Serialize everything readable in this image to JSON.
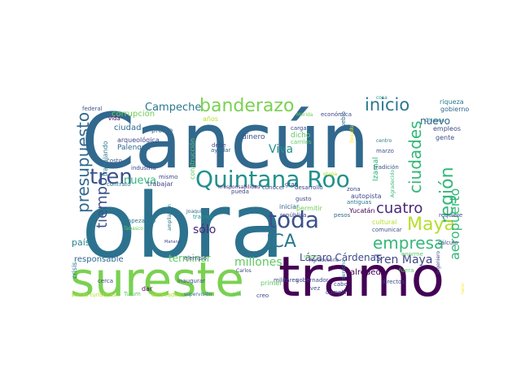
{
  "words": [
    {
      "text": "Cancún",
      "color": "#31688e"
    },
    {
      "text": "obra",
      "color": "#2c728e"
    },
    {
      "text": "sureste",
      "color": "#7ad151"
    },
    {
      "text": "tramo",
      "color": "#440154"
    },
    {
      "text": "Quintana Roo",
      "color": "#21918c"
    },
    {
      "text": "banderazo",
      "color": "#7ad151"
    },
    {
      "text": "presupuesto",
      "color": "#31688e"
    },
    {
      "text": "tren",
      "color": "#3b528b"
    },
    {
      "text": "inicio",
      "color": "#2a788e"
    },
    {
      "text": "región",
      "color": "#35b779"
    },
    {
      "text": "ciudades",
      "color": "#35b779"
    },
    {
      "text": "Maya",
      "color": "#b5de2b"
    },
    {
      "text": "empresa",
      "color": "#35b779"
    },
    {
      "text": "toda",
      "color": "#3b528b"
    },
    {
      "text": "ICA",
      "color": "#2a788e"
    },
    {
      "text": "cuatro",
      "color": "#482878"
    },
    {
      "text": "tiempo",
      "color": "#3b528b"
    },
    {
      "text": "aeropuerto",
      "color": "#35b779"
    },
    {
      "text": "Tren Maya",
      "color": "#3e4989"
    },
    {
      "text": "nuevo",
      "color": "#31688e"
    },
    {
      "text": "Campeche",
      "color": "#2a788e"
    },
    {
      "text": "nueva",
      "color": "#35b779"
    },
    {
      "text": "Viva",
      "color": "#21918c"
    },
    {
      "text": "sólo",
      "color": "#482878"
    },
    {
      "text": "millones",
      "color": "#5ec962"
    },
    {
      "text": "terminar",
      "color": "#5ec962"
    },
    {
      "text": "Lázaro Cárdenas",
      "color": "#3e4989"
    },
    {
      "text": "responsable",
      "color": "#31688e"
    },
    {
      "text": "país",
      "color": "#26828e"
    },
    {
      "text": "corrupción",
      "color": "#6ece58"
    },
    {
      "text": "ciudad",
      "color": "#31688e"
    },
    {
      "text": "Palenque",
      "color": "#31688e"
    },
    {
      "text": "arqueológica",
      "color": "#3e4989"
    },
    {
      "text": "vida",
      "color": "#440154"
    },
    {
      "text": "federal",
      "color": "#3b528b"
    },
    {
      "text": "años",
      "color": "#b5de2b"
    },
    {
      "text": "pronto",
      "color": "#31688e"
    },
    {
      "text": "dinero",
      "color": "#3b528b"
    },
    {
      "text": "construcción",
      "color": "#5ec962"
    },
    {
      "text": "debe",
      "color": "#3e4989"
    },
    {
      "text": "ayudar",
      "color": "#31688e"
    },
    {
      "text": "carga",
      "color": "#3e4989"
    },
    {
      "text": "dicho",
      "color": "#5ec962"
    },
    {
      "text": "carriles",
      "color": "#5ec962"
    },
    {
      "text": "Mérida",
      "color": "#6ece58"
    },
    {
      "text": "económica",
      "color": "#3e4989"
    },
    {
      "text": "pueblo",
      "color": "#31688e"
    },
    {
      "text": "llevado",
      "color": "#fde725"
    },
    {
      "text": "cosa",
      "color": "#21918c"
    },
    {
      "text": "riqueza",
      "color": "#2a788e"
    },
    {
      "text": "gobierno",
      "color": "#31688e"
    },
    {
      "text": "Chiapas",
      "color": "#2a788e"
    },
    {
      "text": "empleos",
      "color": "#3e4989"
    },
    {
      "text": "gente",
      "color": "#3b528b"
    },
    {
      "text": "centro",
      "color": "#2a788e"
    },
    {
      "text": "marzo",
      "color": "#3b528b"
    },
    {
      "text": "Izamal",
      "color": "#35b779"
    },
    {
      "text": "tradición",
      "color": "#3b528b"
    },
    {
      "text": "trabajando",
      "color": "#2a788e"
    },
    {
      "text": "costo",
      "color": "#3b528b"
    },
    {
      "text": "industria",
      "color": "#3e4989"
    },
    {
      "text": "contrato",
      "color": "#2a788e"
    },
    {
      "text": "mismo",
      "color": "#3e4989"
    },
    {
      "text": "trabajar",
      "color": "#3e4989"
    },
    {
      "text": "irresponsabilidad",
      "color": "#482878"
    },
    {
      "text": "conocer",
      "color": "#3e4989"
    },
    {
      "text": "pueda",
      "color": "#3e4989"
    },
    {
      "text": "gran",
      "color": "#3e4989"
    },
    {
      "text": "desarrollo",
      "color": "#3e4989"
    },
    {
      "text": "etapa",
      "color": "#b5de2b"
    },
    {
      "text": "zona",
      "color": "#3e4989"
    },
    {
      "text": "Agradecido",
      "color": "#35b779"
    },
    {
      "text": "autopista",
      "color": "#3e4989"
    },
    {
      "text": "antiguas",
      "color": "#2a788e"
    },
    {
      "text": "gusto",
      "color": "#3e4989"
    },
    {
      "text": "iniciar",
      "color": "#31688e"
    },
    {
      "text": "permitir",
      "color": "#6ece58"
    },
    {
      "text": "república",
      "color": "#3e4989"
    },
    {
      "text": "pesos",
      "color": "#31688e"
    },
    {
      "text": "Yucatán",
      "color": "#440154"
    },
    {
      "text": "requiere",
      "color": "#3e4989"
    },
    {
      "text": "cultural",
      "color": "#b5de2b"
    },
    {
      "text": "comunicar",
      "color": "#3b528b"
    },
    {
      "text": "cálculo",
      "color": "#3e4989"
    },
    {
      "text": "ingeniero",
      "color": "#3e4989"
    },
    {
      "text": "fuera",
      "color": "#5ec962"
    },
    {
      "text": "Empezando",
      "color": "#2a788e"
    },
    {
      "text": "Tabasco",
      "color": "#5ec962"
    },
    {
      "text": "ampliación",
      "color": "#2a788e"
    },
    {
      "text": "Joaquín",
      "color": "#31688e"
    },
    {
      "text": "trabajo",
      "color": "#21918c"
    },
    {
      "text": "Mañana",
      "color": "#3e4989"
    },
    {
      "text": "ejemplo",
      "color": "#3e4989"
    },
    {
      "text": "Carlos",
      "color": "#3e4989"
    },
    {
      "text": "militares",
      "color": "#3e4989"
    },
    {
      "text": "Agradecerle",
      "color": "#3e4989"
    },
    {
      "text": "seguro",
      "color": "#6ece58"
    },
    {
      "text": "gobernador",
      "color": "#3e4989"
    },
    {
      "text": "alrededor",
      "color": "#440154"
    },
    {
      "text": "vez",
      "color": "#3b528b"
    },
    {
      "text": "cabo",
      "color": "#3e4989"
    },
    {
      "text": "cumplir",
      "color": "#3e4989"
    },
    {
      "text": "directos",
      "color": "#3e4989"
    },
    {
      "text": "derecho",
      "color": "#2a788e"
    },
    {
      "text": "crisis",
      "color": "#2a788e"
    },
    {
      "text": "cerca",
      "color": "#3e4989"
    },
    {
      "text": "inaugurar",
      "color": "#3e4989"
    },
    {
      "text": "dar",
      "color": "#440154"
    },
    {
      "text": "primer",
      "color": "#5ec962"
    },
    {
      "text": "creo",
      "color": "#3e4989"
    },
    {
      "text": "vía",
      "color": "#5ec962"
    },
    {
      "text": "supervisión",
      "color": "#31688e"
    },
    {
      "text": "enorme",
      "color": "#5ec962"
    },
    {
      "text": "Tulum",
      "color": "#5ec962"
    },
    {
      "text": "zonas turísticas",
      "color": "#b5de2b"
    },
    {
      "text": "ahorcados",
      "color": "#b5de2b"
    },
    {
      "text": "hacer",
      "color": "#fde725"
    }
  ]
}
